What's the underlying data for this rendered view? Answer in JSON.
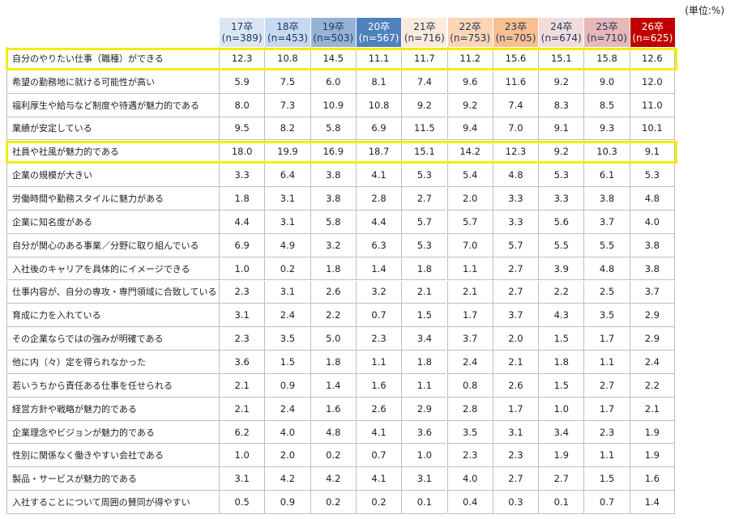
{
  "unit": "(単位:%)",
  "table": {
    "columns": [
      {
        "year": "17卒",
        "n": "(n=389)",
        "color": "#dce6f2",
        "text_color": "#1f3864"
      },
      {
        "year": "18卒",
        "n": "(n=453)",
        "color": "#c6d9f0",
        "text_color": "#1f3864"
      },
      {
        "year": "19卒",
        "n": "(n=503)",
        "color": "#95b3d7",
        "text_color": "#1f3864"
      },
      {
        "year": "20卒",
        "n": "(n=567)",
        "color": "#4f81bd",
        "text_color": "#ffffff"
      },
      {
        "year": "21卒",
        "n": "(n=716)",
        "color": "#fdeada",
        "text_color": "#1f3864"
      },
      {
        "year": "22卒",
        "n": "(n=753)",
        "color": "#fcd5b4",
        "text_color": "#1f3864"
      },
      {
        "year": "23卒",
        "n": "(n=705)",
        "color": "#fabf8f",
        "text_color": "#1f3864"
      },
      {
        "year": "24卒",
        "n": "(n=674)",
        "color": "#f2dcdb",
        "text_color": "#1f3864"
      },
      {
        "year": "25卒",
        "n": "(n=710)",
        "color": "#e6b8b7",
        "text_color": "#1f3864"
      },
      {
        "year": "26卒",
        "n": "(n=625)",
        "color": "#c00000",
        "text_color": "#ffffff"
      }
    ],
    "highlight_color": "#f2ee00",
    "rows": [
      {
        "label": "自分のやりたい仕事（職種）ができる",
        "values": [
          "12.3",
          "10.8",
          "14.5",
          "11.1",
          "11.7",
          "11.2",
          "15.6",
          "15.1",
          "15.8",
          "12.6"
        ],
        "highlight": true
      },
      {
        "label": "希望の勤務地に就ける可能性が高い",
        "values": [
          "5.9",
          "7.5",
          "6.0",
          "8.1",
          "7.4",
          "9.6",
          "11.6",
          "9.2",
          "9.0",
          "12.0"
        ]
      },
      {
        "label": "福利厚生や給与など制度や待遇が魅力的である",
        "values": [
          "8.0",
          "7.3",
          "10.9",
          "10.8",
          "9.2",
          "9.2",
          "7.4",
          "8.3",
          "8.5",
          "11.0"
        ]
      },
      {
        "label": "業績が安定している",
        "values": [
          "9.5",
          "8.2",
          "5.8",
          "6.9",
          "11.5",
          "9.4",
          "7.0",
          "9.1",
          "9.3",
          "10.1"
        ]
      },
      {
        "label": "社員や社風が魅力的である",
        "values": [
          "18.0",
          "19.9",
          "16.9",
          "18.7",
          "15.1",
          "14.2",
          "12.3",
          "9.2",
          "10.3",
          "9.1"
        ],
        "highlight": true
      },
      {
        "label": "企業の規模が大きい",
        "values": [
          "3.3",
          "6.4",
          "3.8",
          "4.1",
          "5.3",
          "5.4",
          "4.8",
          "5.3",
          "6.1",
          "5.3"
        ]
      },
      {
        "label": "労働時間や勤務スタイルに魅力がある",
        "values": [
          "1.8",
          "3.1",
          "3.8",
          "2.8",
          "2.7",
          "2.0",
          "3.3",
          "3.3",
          "3.8",
          "4.8"
        ]
      },
      {
        "label": "企業に知名度がある",
        "values": [
          "4.4",
          "3.1",
          "5.8",
          "4.4",
          "5.7",
          "5.7",
          "3.3",
          "5.6",
          "3.7",
          "4.0"
        ]
      },
      {
        "label": "自分が関心のある事業／分野に取り組んでいる",
        "values": [
          "6.9",
          "4.9",
          "3.2",
          "6.3",
          "5.3",
          "7.0",
          "5.7",
          "5.5",
          "5.5",
          "3.8"
        ]
      },
      {
        "label": "入社後のキャリアを具体的にイメージできる",
        "values": [
          "1.0",
          "0.2",
          "1.8",
          "1.4",
          "1.8",
          "1.1",
          "2.7",
          "3.9",
          "4.8",
          "3.8"
        ]
      },
      {
        "label": "仕事内容が、自分の専攻・専門領域に合致している",
        "values": [
          "2.3",
          "3.1",
          "2.6",
          "3.2",
          "2.1",
          "2.1",
          "2.7",
          "2.2",
          "2.5",
          "3.7"
        ]
      },
      {
        "label": "育成に力を入れている",
        "values": [
          "3.1",
          "2.4",
          "2.2",
          "0.7",
          "1.5",
          "1.7",
          "3.7",
          "4.3",
          "3.5",
          "2.9"
        ]
      },
      {
        "label": "その企業ならではの強みが明確である",
        "values": [
          "2.3",
          "3.5",
          "5.0",
          "2.3",
          "3.4",
          "3.7",
          "2.0",
          "1.5",
          "1.7",
          "2.9"
        ]
      },
      {
        "label": "他に内（々）定を得られなかった",
        "values": [
          "3.6",
          "1.5",
          "1.8",
          "1.1",
          "1.8",
          "2.4",
          "2.1",
          "1.8",
          "1.1",
          "2.4"
        ]
      },
      {
        "label": "若いうちから責任ある仕事を任せられる",
        "values": [
          "2.1",
          "0.9",
          "1.4",
          "1.6",
          "1.1",
          "0.8",
          "2.6",
          "1.5",
          "2.7",
          "2.2"
        ]
      },
      {
        "label": "経営方針や戦略が魅力的である",
        "values": [
          "2.1",
          "2.4",
          "1.6",
          "2.6",
          "2.9",
          "2.8",
          "1.7",
          "1.0",
          "1.7",
          "2.1"
        ]
      },
      {
        "label": "企業理念やビジョンが魅力的である",
        "values": [
          "6.2",
          "4.0",
          "4.8",
          "4.1",
          "3.6",
          "3.5",
          "3.1",
          "3.4",
          "2.3",
          "1.9"
        ]
      },
      {
        "label": "性別に関係なく働きやすい会社である",
        "values": [
          "1.0",
          "2.0",
          "0.2",
          "0.7",
          "1.0",
          "2.3",
          "2.3",
          "1.9",
          "1.1",
          "1.9"
        ]
      },
      {
        "label": "製品・サービスが魅力的である",
        "values": [
          "3.1",
          "4.2",
          "4.2",
          "4.1",
          "3.1",
          "4.0",
          "2.7",
          "2.7",
          "1.5",
          "1.6"
        ]
      },
      {
        "label": "入社することについて周囲の賛同が得やすい",
        "values": [
          "0.5",
          "0.9",
          "0.2",
          "0.2",
          "0.1",
          "0.4",
          "0.3",
          "0.1",
          "0.7",
          "1.4"
        ]
      }
    ]
  }
}
